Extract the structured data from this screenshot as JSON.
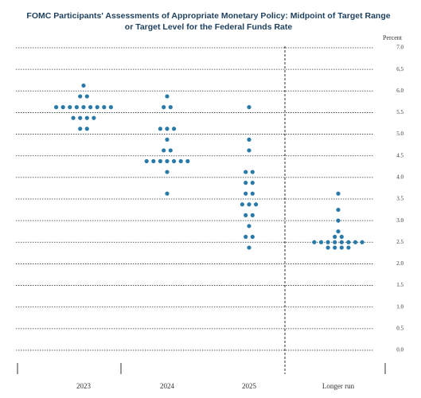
{
  "chart_data": {
    "type": "dot",
    "title": [
      "FOMC Participants' Assessments of Appropriate Monetary Policy: Midpoint of Target Range",
      "or Target Level for the Federal Funds Rate"
    ],
    "y_label": "Percent",
    "categories": [
      "2023",
      "2024",
      "2025",
      "Longer run"
    ],
    "values": [
      [
        6.125,
        5.875,
        5.875,
        5.625,
        5.625,
        5.625,
        5.625,
        5.625,
        5.625,
        5.625,
        5.625,
        5.625,
        5.375,
        5.375,
        5.375,
        5.375,
        5.125,
        5.125
      ],
      [
        5.875,
        5.625,
        5.625,
        5.125,
        5.125,
        5.125,
        4.875,
        4.625,
        4.625,
        4.375,
        4.375,
        4.375,
        4.375,
        4.375,
        4.375,
        4.375,
        4.125,
        3.625
      ],
      [
        5.625,
        4.875,
        4.625,
        4.125,
        4.125,
        3.875,
        3.875,
        3.625,
        3.625,
        3.375,
        3.375,
        3.375,
        3.125,
        3.125,
        2.875,
        2.625,
        2.625,
        2.375
      ],
      [
        3.625,
        3.25,
        3.0,
        2.75,
        2.625,
        2.625,
        2.5,
        2.5,
        2.5,
        2.5,
        2.5,
        2.5,
        2.5,
        2.5,
        2.375,
        2.375,
        2.375,
        2.375
      ]
    ],
    "color": "#2a7aa8",
    "ylim": [
      0,
      7
    ],
    "yticks": [
      {
        "value": 0,
        "label": "0.0"
      },
      {
        "value": 0.5,
        "label": "0.5"
      },
      {
        "value": 1,
        "label": "1.0"
      },
      {
        "value": 1.5,
        "label": "1.5"
      },
      {
        "value": 2,
        "label": "2.0"
      },
      {
        "value": 2.5,
        "label": "2.5"
      },
      {
        "value": 3,
        "label": "3.0"
      },
      {
        "value": 3.5,
        "label": "3.5"
      },
      {
        "value": 4,
        "label": "4.0"
      },
      {
        "value": 4.5,
        "label": "4.5"
      },
      {
        "value": 5,
        "label": "5.0"
      },
      {
        "value": 5.5,
        "label": "5.5"
      },
      {
        "value": 6,
        "label": "6.0"
      },
      {
        "value": 6.5,
        "label": "6.5"
      },
      {
        "value": 7,
        "label": "7.0"
      }
    ],
    "grid": true
  }
}
